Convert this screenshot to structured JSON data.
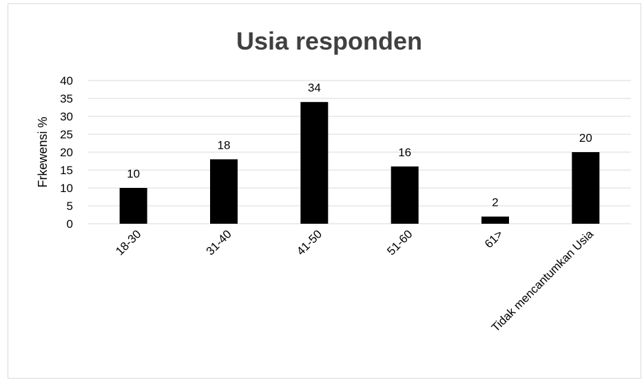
{
  "chart_data": {
    "type": "bar",
    "title": "Usia responden",
    "xlabel": "",
    "ylabel": "Frkewensi %",
    "categories": [
      "18-30",
      "31-40",
      "41-50",
      "51-60",
      "61>",
      "Tidak mencantumkan Usia"
    ],
    "values": [
      10,
      18,
      34,
      16,
      2,
      20
    ],
    "data_labels": [
      "10",
      "18",
      "34",
      "16",
      "2",
      "20"
    ],
    "ylim": [
      0,
      40
    ],
    "yticks": [
      "0",
      "5",
      "10",
      "15",
      "20",
      "25",
      "30",
      "35",
      "40"
    ],
    "grid": true,
    "legend": "none",
    "bar_color": "#000000"
  }
}
